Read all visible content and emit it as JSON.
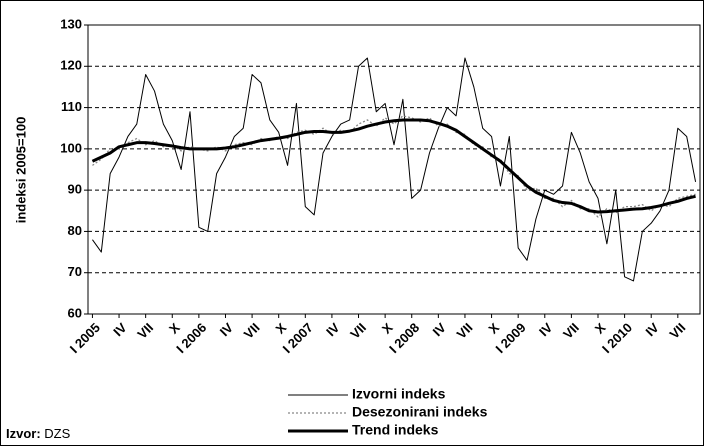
{
  "chart_data": {
    "type": "line",
    "y_label": "indeksi 2005=100",
    "source_label": "Izvor:",
    "source": "DZS",
    "categories": [
      "I 2005",
      null,
      null,
      "IV",
      null,
      null,
      "VII",
      null,
      null,
      "X",
      null,
      null,
      "I 2006",
      null,
      null,
      "IV",
      null,
      null,
      "VII",
      null,
      null,
      "X",
      null,
      null,
      "I 2007",
      null,
      null,
      "IV",
      null,
      null,
      "VII",
      null,
      null,
      "X",
      null,
      null,
      "I 2008",
      null,
      null,
      "IV",
      null,
      null,
      "VII",
      null,
      null,
      "X",
      null,
      null,
      "I 2009",
      null,
      null,
      "IV",
      null,
      null,
      "VII",
      null,
      null,
      "X",
      null,
      null,
      "I 2010",
      null,
      null,
      "IV",
      null,
      null,
      "VII",
      null,
      null
    ],
    "series": [
      {
        "name": "Izvorni indeks",
        "color": "#000000",
        "line_style": "solid",
        "line_width": 1,
        "values": [
          78,
          75,
          94,
          98,
          103,
          106,
          118,
          114,
          106,
          102,
          95,
          109,
          81,
          80,
          94,
          98,
          103,
          105,
          118,
          116,
          107,
          104,
          96,
          111,
          86,
          84,
          99,
          103,
          106,
          107,
          120,
          122,
          109,
          111,
          101,
          112,
          88,
          90,
          99,
          105,
          110,
          108,
          122,
          115,
          105,
          103,
          91,
          103,
          76,
          73,
          83,
          90,
          89,
          91,
          104,
          99,
          92,
          88,
          77,
          90,
          69,
          68,
          80,
          82,
          85,
          90,
          105,
          103,
          92
        ]
      },
      {
        "name": "Desezonirani indeks",
        "color": "#888888",
        "line_style": "dotted",
        "line_width": 1.3,
        "values": [
          96,
          97.5,
          100,
          100,
          101.5,
          102.5,
          101,
          102,
          100.5,
          101,
          99.5,
          100.5,
          100,
          99.5,
          100.5,
          99.5,
          101,
          101.5,
          101,
          102.5,
          102,
          103,
          102.5,
          104,
          104.5,
          103.5,
          105,
          103.5,
          104.5,
          104,
          106,
          107,
          105.5,
          107.5,
          106,
          108,
          107.5,
          106.5,
          107.5,
          105.5,
          106,
          104,
          103.5,
          101,
          100.5,
          98,
          97.5,
          94,
          93.5,
          90,
          90.5,
          88,
          88,
          86,
          87.5,
          85.5,
          85.5,
          83.5,
          85.5,
          84.5,
          86,
          86,
          86.5,
          85,
          86.5,
          86,
          88,
          88.5,
          89
        ]
      },
      {
        "name": "Trend indeks",
        "color": "#000000",
        "line_style": "solid",
        "line_width": 3,
        "values": [
          97,
          98,
          99,
          100.5,
          101,
          101.5,
          101.5,
          101.3,
          101,
          100.7,
          100.3,
          100,
          100,
          100,
          100,
          100.2,
          100.5,
          101,
          101.5,
          102,
          102.3,
          102.6,
          103,
          103.5,
          104,
          104.2,
          104.2,
          104,
          104,
          104.3,
          104.8,
          105.5,
          106,
          106.5,
          106.8,
          107,
          107,
          107,
          106.8,
          106.2,
          105.5,
          104.5,
          103,
          101.5,
          100,
          98.5,
          97,
          95,
          93,
          91,
          89.5,
          88.5,
          87.5,
          87,
          86.8,
          86,
          85,
          84.7,
          84.8,
          85,
          85.2,
          85.4,
          85.5,
          85.8,
          86.2,
          86.8,
          87.3,
          88,
          88.5
        ]
      }
    ],
    "ylim": [
      60,
      130
    ],
    "yticks": [
      60,
      70,
      80,
      90,
      100,
      110,
      120,
      130
    ],
    "grid": true
  }
}
